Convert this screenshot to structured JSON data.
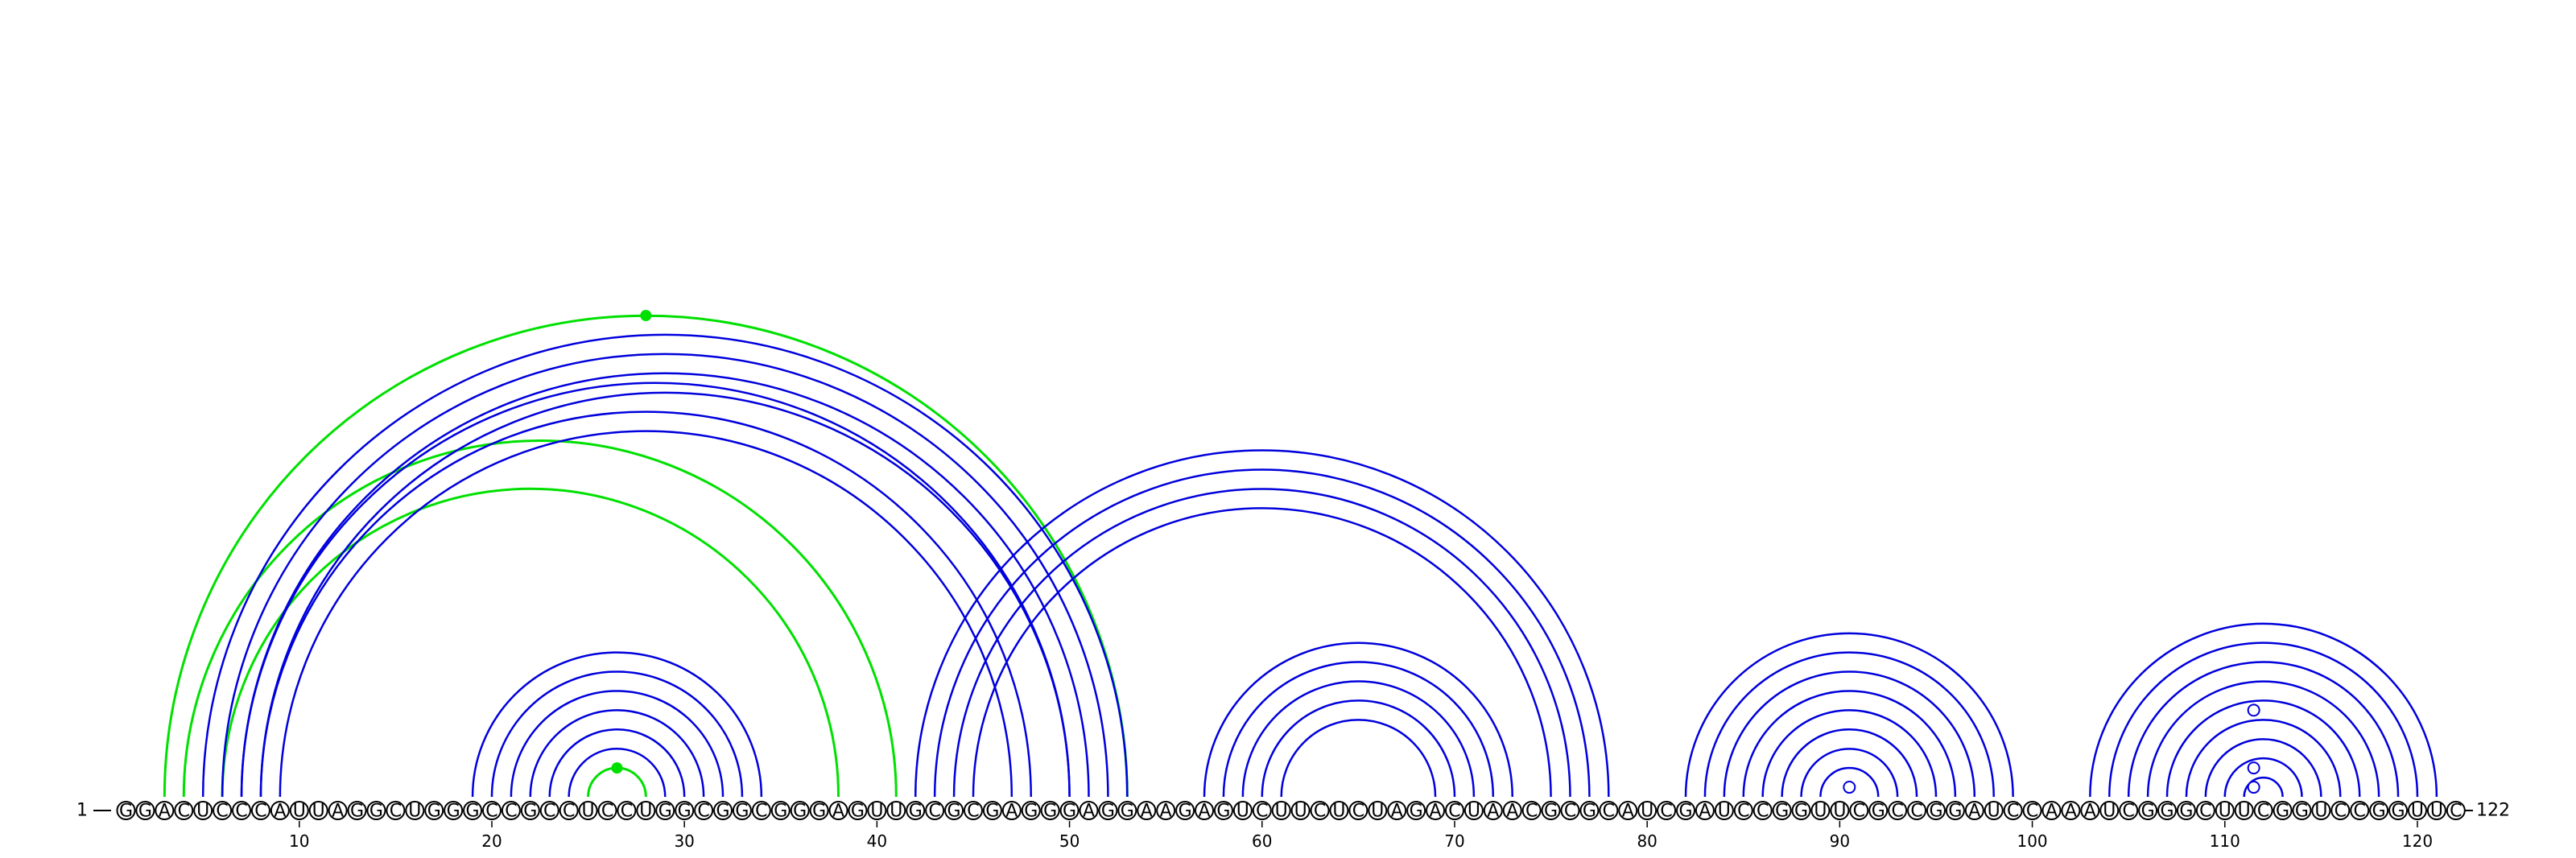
{
  "chart_data": {
    "type": "arc-diagram",
    "sequence": "GGACUCCCAUUAGGCUGGGCCGCCUCCUGGCGGCGGGAGUUGCGCGAGGGAGGAAGAGUCUUCUCUAGACUAACGCGCAUCGAUCCGGUUCGCCGGAUCCAAAUCGGGCUUCGGUCCGGUUC",
    "start_label": "1",
    "end_label": "122",
    "tick_labels": [
      10,
      20,
      30,
      40,
      50,
      60,
      70,
      80,
      90,
      100,
      110,
      120
    ],
    "colors": {
      "pair": "#0000dd",
      "alt": "#00e000",
      "marker": "#00e000"
    },
    "blue_helices": [
      {
        "i": 5,
        "j": 53,
        "length": 4
      },
      {
        "i": 7,
        "j": 50,
        "length": 1
      },
      {
        "i": 8,
        "j": 48,
        "length": 2
      },
      {
        "i": 19,
        "j": 34,
        "length": 6
      },
      {
        "i": 42,
        "j": 78,
        "length": 4
      },
      {
        "i": 57,
        "j": 73,
        "length": 5
      },
      {
        "i": 82,
        "j": 99,
        "length": 8
      },
      {
        "i": 103,
        "j": 121,
        "length": 10
      }
    ],
    "green_arcs": [
      {
        "i": 3,
        "j": 53,
        "marker": true
      },
      {
        "i": 4,
        "j": 41,
        "marker": false
      },
      {
        "i": 6,
        "j": 38,
        "marker": false
      },
      {
        "i": 25,
        "j": 28,
        "marker": true
      }
    ],
    "loop_markers": [
      {
        "i": 90,
        "j": 91
      },
      {
        "i": 110,
        "j": 113
      },
      {
        "i": 111,
        "j": 112
      },
      {
        "i": 107,
        "j": 116
      }
    ]
  }
}
